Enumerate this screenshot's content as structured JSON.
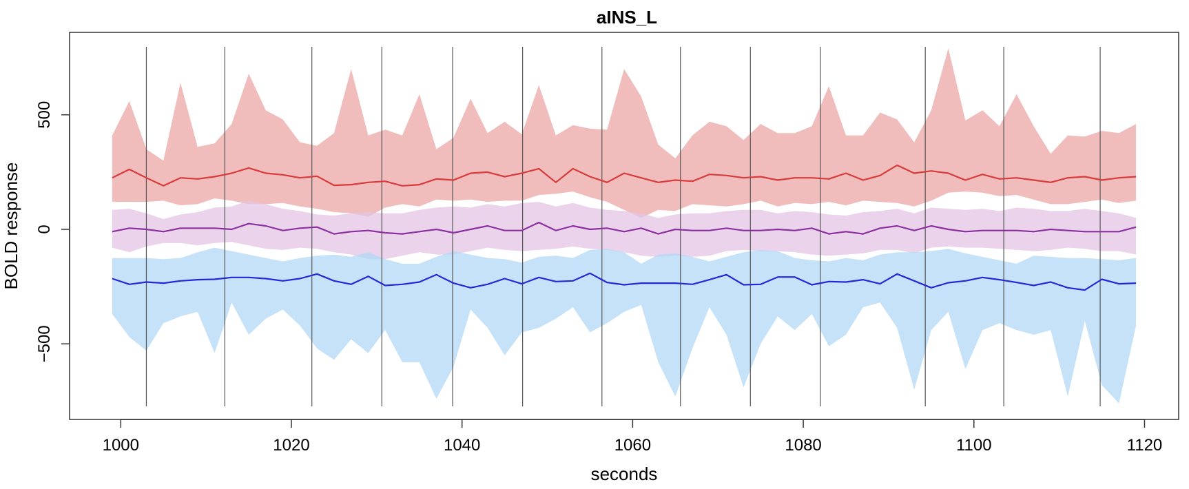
{
  "chart_data": {
    "type": "area",
    "title": "aINS_L",
    "xlabel": "seconds",
    "ylabel": "BOLD response",
    "xlim": [
      994,
      1124
    ],
    "ylim": [
      -830,
      860
    ],
    "xticks": [
      1000,
      1020,
      1040,
      1060,
      1080,
      1100,
      1120
    ],
    "yticks": [
      500,
      0,
      -500
    ],
    "grid": false,
    "legend": "none",
    "vlines": [
      1003,
      1012.2,
      1022.4,
      1030.6,
      1038.9,
      1047.1,
      1056.4,
      1065.6,
      1073.8,
      1082,
      1094.3,
      1103.5,
      1114.8
    ],
    "x": [
      999,
      1001,
      1003,
      1005,
      1007,
      1009,
      1011,
      1013,
      1015,
      1017,
      1019,
      1021,
      1023,
      1025,
      1027,
      1029,
      1031,
      1033,
      1035,
      1037,
      1039,
      1041,
      1043,
      1045,
      1047,
      1049,
      1051,
      1053,
      1055,
      1057,
      1059,
      1061,
      1063,
      1065,
      1067,
      1069,
      1071,
      1073,
      1075,
      1077,
      1079,
      1081,
      1083,
      1085,
      1087,
      1089,
      1091,
      1093,
      1095,
      1097,
      1099,
      1101,
      1103,
      1105,
      1107,
      1109,
      1111,
      1113,
      1115,
      1117,
      1119
    ],
    "series": [
      {
        "color": "#d93a3a",
        "band_color": "#eba6a6",
        "mean": [
          225,
          262,
          225,
          190,
          225,
          220,
          230,
          245,
          268,
          245,
          238,
          225,
          232,
          192,
          195,
          205,
          210,
          190,
          195,
          220,
          215,
          245,
          250,
          230,
          245,
          265,
          205,
          265,
          230,
          205,
          245,
          225,
          205,
          215,
          210,
          240,
          235,
          225,
          230,
          215,
          225,
          225,
          220,
          245,
          215,
          235,
          280,
          245,
          255,
          245,
          215,
          240,
          220,
          225,
          215,
          205,
          225,
          230,
          215,
          225,
          230
        ],
        "upper": [
          410,
          560,
          350,
          300,
          640,
          360,
          375,
          460,
          680,
          520,
          480,
          380,
          365,
          420,
          700,
          410,
          435,
          410,
          590,
          350,
          400,
          570,
          420,
          470,
          415,
          630,
          410,
          455,
          440,
          435,
          700,
          580,
          370,
          310,
          410,
          470,
          450,
          390,
          460,
          420,
          420,
          450,
          625,
          410,
          410,
          510,
          480,
          380,
          520,
          790,
          475,
          520,
          450,
          590,
          450,
          330,
          410,
          405,
          430,
          420,
          460
        ],
        "lower": [
          120,
          120,
          120,
          125,
          105,
          110,
          135,
          125,
          110,
          110,
          115,
          100,
          90,
          75,
          70,
          55,
          95,
          110,
          100,
          130,
          125,
          130,
          120,
          125,
          125,
          150,
          155,
          165,
          140,
          120,
          85,
          50,
          85,
          80,
          110,
          105,
          100,
          110,
          125,
          100,
          115,
          110,
          120,
          105,
          125,
          120,
          115,
          100,
          125,
          160,
          165,
          160,
          145,
          150,
          130,
          110,
          110,
          120,
          130,
          115,
          125
        ]
      },
      {
        "color": "#8b2fa0",
        "band_color": "#e4c6e4",
        "mean": [
          -10,
          5,
          0,
          -10,
          5,
          5,
          5,
          0,
          25,
          15,
          -5,
          5,
          10,
          -20,
          -10,
          -5,
          -15,
          -20,
          -10,
          0,
          -15,
          0,
          15,
          -5,
          -5,
          30,
          -5,
          15,
          0,
          5,
          -10,
          5,
          -20,
          0,
          -5,
          -5,
          5,
          -5,
          -5,
          0,
          -5,
          5,
          -20,
          -10,
          -20,
          5,
          15,
          -5,
          15,
          0,
          -10,
          -5,
          -5,
          -5,
          -10,
          0,
          -5,
          -10,
          -10,
          -10,
          10
        ],
        "upper": [
          85,
          90,
          70,
          45,
          65,
          75,
          95,
          100,
          125,
          110,
          90,
          80,
          65,
          60,
          70,
          75,
          70,
          70,
          85,
          95,
          100,
          95,
          110,
          100,
          115,
          120,
          100,
          115,
          95,
          85,
          80,
          70,
          50,
          65,
          70,
          70,
          80,
          85,
          85,
          70,
          80,
          75,
          65,
          60,
          75,
          80,
          90,
          70,
          95,
          90,
          85,
          90,
          80,
          95,
          90,
          80,
          80,
          90,
          80,
          70,
          50
        ],
        "lower": [
          -80,
          -100,
          -75,
          -60,
          -60,
          -70,
          -60,
          -55,
          -70,
          -85,
          -90,
          -80,
          -85,
          -100,
          -110,
          -130,
          -130,
          -115,
          -100,
          -110,
          -110,
          -95,
          -80,
          -90,
          -95,
          -90,
          -85,
          -75,
          -85,
          -90,
          -100,
          -115,
          -120,
          -115,
          -120,
          -115,
          -95,
          -90,
          -95,
          -95,
          -100,
          -110,
          -115,
          -110,
          -105,
          -90,
          -90,
          -105,
          -80,
          -75,
          -80,
          -80,
          -85,
          -90,
          -95,
          -90,
          -80,
          -85,
          -95,
          -95,
          -110
        ]
      },
      {
        "color": "#2626d9",
        "band_color": "#b2d8f5",
        "mean": [
          -215,
          -240,
          -230,
          -235,
          -225,
          -220,
          -218,
          -210,
          -210,
          -215,
          -225,
          -215,
          -195,
          -225,
          -240,
          -205,
          -245,
          -240,
          -230,
          -198,
          -235,
          -255,
          -240,
          -215,
          -238,
          -210,
          -228,
          -225,
          -192,
          -232,
          -242,
          -235,
          -235,
          -235,
          -240,
          -220,
          -198,
          -242,
          -240,
          -208,
          -208,
          -242,
          -228,
          -230,
          -220,
          -238,
          -195,
          -225,
          -255,
          -233,
          -225,
          -210,
          -220,
          -232,
          -245,
          -230,
          -255,
          -265,
          -218,
          -238,
          -235
        ],
        "upper": [
          -125,
          -125,
          -125,
          -130,
          -125,
          -100,
          -80,
          -95,
          -110,
          -125,
          -140,
          -125,
          -115,
          -110,
          -120,
          -100,
          -130,
          -150,
          -150,
          -120,
          -95,
          -110,
          -125,
          -130,
          -145,
          -120,
          -115,
          -125,
          -90,
          -85,
          -100,
          -150,
          -110,
          -105,
          -120,
          -140,
          -120,
          -100,
          -90,
          -95,
          -125,
          -135,
          -140,
          -125,
          -135,
          -110,
          -100,
          -100,
          -95,
          -85,
          -105,
          -120,
          -135,
          -150,
          -115,
          -120,
          -125,
          -125,
          -130,
          -135,
          -125
        ],
        "lower": [
          -370,
          -470,
          -530,
          -410,
          -380,
          -360,
          -540,
          -320,
          -460,
          -390,
          -350,
          -420,
          -520,
          -570,
          -480,
          -540,
          -440,
          -580,
          -580,
          -740,
          -600,
          -350,
          -430,
          -550,
          -450,
          -430,
          -390,
          -340,
          -450,
          -410,
          -360,
          -330,
          -580,
          -730,
          -520,
          -340,
          -460,
          -690,
          -500,
          -380,
          -440,
          -370,
          -510,
          -460,
          -340,
          -320,
          -430,
          -700,
          -440,
          -360,
          -610,
          -440,
          -410,
          -440,
          -460,
          -440,
          -730,
          -400,
          -680,
          -760,
          -420
        ]
      }
    ]
  }
}
